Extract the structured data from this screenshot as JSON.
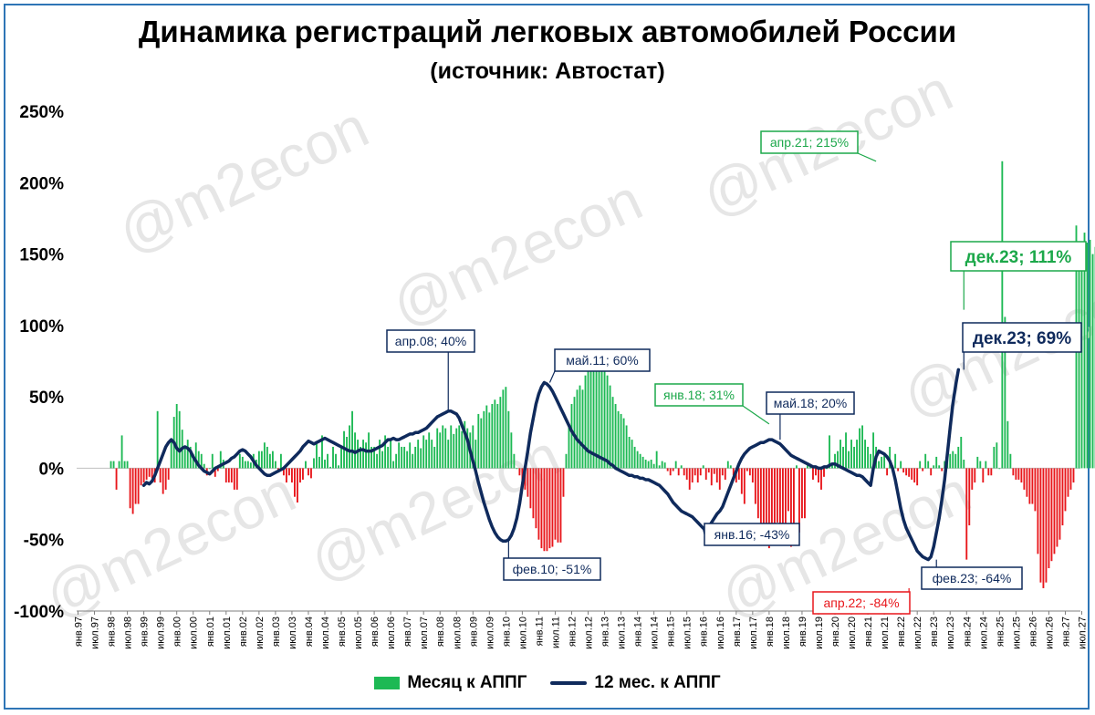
{
  "title": "Динамика регистраций легковых автомобилей России",
  "subtitle": "(источник: Автостат)",
  "watermark": "@m2econ",
  "colors": {
    "bar_pos": "#1db954",
    "bar_neg": "#e8161b",
    "line": "#0f2a5c",
    "ann_green": "#1ca84a",
    "ann_red": "#e8161b",
    "ann_navy": "#0f2a5c"
  },
  "chart_data": {
    "type": "bar",
    "xlim": [
      "янв.97",
      "июл.27"
    ],
    "ylim": [
      -1.0,
      2.5
    ],
    "yticks": [
      "250%",
      "200%",
      "150%",
      "100%",
      "50%",
      "0%",
      "-50%",
      "-100%"
    ],
    "ytick_values": [
      2.5,
      2.0,
      1.5,
      1.0,
      0.5,
      0.0,
      -0.5,
      -1.0
    ],
    "xticks": [
      "янв.97",
      "июл.97",
      "янв.98",
      "июл.98",
      "янв.99",
      "июл.99",
      "янв.00",
      "июл.00",
      "янв.01",
      "июл.01",
      "янв.02",
      "июл.02",
      "янв.03",
      "июл.03",
      "янв.04",
      "июл.04",
      "янв.05",
      "июл.05",
      "янв.06",
      "июл.06",
      "янв.07",
      "июл.07",
      "янв.08",
      "июл.08",
      "янв.09",
      "июл.09",
      "янв.10",
      "июл.10",
      "янв.11",
      "июл.11",
      "янв.12",
      "июл.12",
      "янв.13",
      "июл.13",
      "янв.14",
      "июл.14",
      "янв.15",
      "июл.15",
      "янв.16",
      "июл.16",
      "янв.17",
      "июл.17",
      "янв.18",
      "июл.18",
      "янв.19",
      "июл.19",
      "янв.20",
      "июл.20",
      "янв.21",
      "июл.21",
      "янв.22",
      "июл.22",
      "янв.23",
      "июл.23",
      "янв.24",
      "июл.24",
      "янв.25",
      "июл.25",
      "янв.26",
      "июл.26",
      "янв.27",
      "июл.27"
    ],
    "series": [
      {
        "name": "Месяц к АППГ",
        "type": "bar",
        "start": "янв.98",
        "values": [
          0.05,
          0.05,
          -0.15,
          0.05,
          0.23,
          0.05,
          0.05,
          -0.28,
          -0.32,
          -0.25,
          -0.25,
          -0.12,
          -0.1,
          -0.08,
          -0.06,
          -0.07,
          -0.1,
          0.4,
          -0.1,
          -0.18,
          -0.15,
          -0.08,
          0.2,
          0.36,
          0.45,
          0.4,
          0.27,
          0.15,
          0.2,
          0.15,
          0.1,
          0.18,
          0.12,
          0.1,
          0.03,
          -0.05,
          0.0,
          0.1,
          -0.06,
          -0.02,
          0.12,
          0.06,
          -0.1,
          -0.1,
          -0.1,
          -0.15,
          -0.15,
          0.1,
          0.08,
          0.05,
          0.05,
          0.04,
          0.1,
          0.06,
          0.12,
          0.12,
          0.18,
          0.15,
          0.1,
          0.12,
          0.05,
          -0.03,
          0.1,
          -0.05,
          -0.1,
          -0.05,
          -0.1,
          -0.2,
          -0.24,
          -0.1,
          -0.08,
          0.05,
          -0.05,
          -0.07,
          0.07,
          0.18,
          0.08,
          0.23,
          0.06,
          0.1,
          0.01,
          0.15,
          0.1,
          0.02,
          0.15,
          0.26,
          0.22,
          0.3,
          0.4,
          0.25,
          0.2,
          0.15,
          0.2,
          0.18,
          0.25,
          0.15,
          0.15,
          0.1,
          0.2,
          0.12,
          0.23,
          0.15,
          0.2,
          0.05,
          0.1,
          0.18,
          0.15,
          0.15,
          0.12,
          0.18,
          0.1,
          0.15,
          0.2,
          0.14,
          0.23,
          0.2,
          0.25,
          0.2,
          0.15,
          0.28,
          0.25,
          0.3,
          0.28,
          0.2,
          0.3,
          0.24,
          0.28,
          0.3,
          0.26,
          0.33,
          0.28,
          0.25,
          0.3,
          0.2,
          0.38,
          0.35,
          0.4,
          0.44,
          0.39,
          0.45,
          0.48,
          0.45,
          0.5,
          0.55,
          0.57,
          0.4,
          0.25,
          0.1,
          0.0,
          -0.05,
          -0.1,
          -0.15,
          -0.2,
          -0.28,
          -0.35,
          -0.42,
          -0.5,
          -0.56,
          -0.58,
          -0.58,
          -0.56,
          -0.55,
          -0.5,
          -0.52,
          -0.52,
          -0.2,
          0.1,
          0.3,
          0.45,
          0.5,
          0.55,
          0.58,
          0.55,
          0.65,
          0.7,
          0.8,
          0.82,
          0.72,
          0.8,
          0.82,
          0.7,
          0.65,
          0.58,
          0.5,
          0.45,
          0.4,
          0.38,
          0.35,
          0.3,
          0.22,
          0.2,
          0.15,
          0.12,
          0.1,
          0.08,
          0.06,
          0.05,
          0.06,
          0.03,
          0.12,
          0.02,
          0.05,
          0.04,
          -0.02,
          -0.05,
          -0.02,
          0.05,
          -0.05,
          0.02,
          -0.05,
          -0.08,
          -0.15,
          -0.1,
          -0.05,
          -0.1,
          -0.05,
          0.02,
          -0.08,
          -0.03,
          -0.12,
          -0.04,
          -0.1,
          -0.15,
          -0.05,
          -0.08,
          0.05,
          0.02,
          -0.05,
          -0.1,
          -0.08,
          -0.18,
          -0.25,
          -0.02,
          -0.05,
          -0.1,
          -0.25,
          -0.35,
          -0.4,
          -0.45,
          -0.5,
          -0.56,
          -0.42,
          -0.4,
          -0.38,
          -0.52,
          -0.4,
          -0.43,
          -0.3,
          -0.55,
          -0.48,
          0.02,
          -0.45,
          -0.35,
          -0.35,
          0.02,
          0.03,
          -0.08,
          -0.05,
          -0.1,
          -0.15,
          -0.06,
          0.0,
          0.23,
          0.02,
          0.1,
          0.12,
          0.2,
          0.15,
          0.25,
          0.12,
          0.2,
          0.15,
          0.2,
          0.28,
          0.3,
          0.2,
          0.15,
          0.1,
          0.25,
          0.15,
          0.05,
          0.08,
          0.1,
          -0.05,
          0.15,
          0.02,
          0.1,
          -0.02,
          0.05,
          -0.03,
          -0.05,
          -0.06,
          -0.08,
          -0.1,
          -0.12,
          0.05,
          -0.02,
          0.1,
          0.05,
          -0.05,
          0.02,
          0.08,
          0.02,
          -0.02,
          0.05,
          0.1,
          0.1,
          0.12,
          0.1,
          0.15,
          0.22,
          0.06,
          -0.64,
          -0.4,
          -0.15,
          -0.1,
          0.08,
          0.05,
          -0.1,
          0.05,
          -0.05,
          -0.05,
          0.15,
          0.18,
          0.0,
          2.15,
          1.06,
          0.33,
          0.1,
          -0.05,
          -0.08,
          -0.08,
          -0.1,
          -0.15,
          -0.2,
          -0.25,
          -0.25,
          -0.3,
          -0.6,
          -0.8,
          -0.84,
          -0.8,
          -0.7,
          -0.65,
          -0.6,
          -0.55,
          -0.5,
          -0.4,
          -0.3,
          -0.2,
          -0.15,
          -0.1,
          1.7,
          1.52,
          1.5,
          1.65,
          1.58,
          1.6,
          1.5,
          1.55,
          1.4,
          1.2,
          1.11
        ]
      },
      {
        "name": "12 мес. к АППГ",
        "type": "line",
        "start": "янв.99",
        "values": [
          -0.12,
          -0.1,
          -0.11,
          -0.09,
          -0.05,
          0.0,
          0.05,
          0.1,
          0.15,
          0.18,
          0.2,
          0.18,
          0.14,
          0.12,
          0.14,
          0.15,
          0.14,
          0.12,
          0.08,
          0.05,
          0.02,
          0.0,
          -0.02,
          -0.03,
          -0.04,
          -0.02,
          0.0,
          0.01,
          0.02,
          0.03,
          0.04,
          0.05,
          0.07,
          0.08,
          0.1,
          0.12,
          0.13,
          0.12,
          0.1,
          0.08,
          0.05,
          0.02,
          0.0,
          -0.02,
          -0.04,
          -0.05,
          -0.05,
          -0.04,
          -0.03,
          -0.02,
          -0.01,
          0.0,
          0.02,
          0.04,
          0.06,
          0.08,
          0.1,
          0.12,
          0.15,
          0.17,
          0.19,
          0.18,
          0.17,
          0.18,
          0.19,
          0.2,
          0.21,
          0.2,
          0.19,
          0.18,
          0.17,
          0.16,
          0.15,
          0.14,
          0.13,
          0.12,
          0.12,
          0.11,
          0.12,
          0.13,
          0.13,
          0.12,
          0.12,
          0.12,
          0.13,
          0.14,
          0.15,
          0.16,
          0.18,
          0.2,
          0.2,
          0.21,
          0.2,
          0.2,
          0.21,
          0.22,
          0.23,
          0.24,
          0.24,
          0.25,
          0.25,
          0.26,
          0.27,
          0.28,
          0.3,
          0.32,
          0.34,
          0.36,
          0.37,
          0.38,
          0.39,
          0.4,
          0.4,
          0.39,
          0.38,
          0.35,
          0.3,
          0.25,
          0.2,
          0.12,
          0.05,
          -0.02,
          -0.1,
          -0.17,
          -0.24,
          -0.3,
          -0.36,
          -0.41,
          -0.45,
          -0.48,
          -0.5,
          -0.51,
          -0.51,
          -0.5,
          -0.47,
          -0.42,
          -0.35,
          -0.25,
          -0.12,
          0.0,
          0.12,
          0.25,
          0.35,
          0.45,
          0.52,
          0.57,
          0.6,
          0.59,
          0.57,
          0.54,
          0.5,
          0.46,
          0.42,
          0.38,
          0.34,
          0.3,
          0.26,
          0.23,
          0.2,
          0.18,
          0.16,
          0.14,
          0.12,
          0.11,
          0.1,
          0.09,
          0.08,
          0.07,
          0.06,
          0.05,
          0.03,
          0.02,
          0.0,
          -0.01,
          -0.02,
          -0.03,
          -0.04,
          -0.05,
          -0.05,
          -0.06,
          -0.06,
          -0.07,
          -0.07,
          -0.08,
          -0.08,
          -0.09,
          -0.1,
          -0.11,
          -0.12,
          -0.14,
          -0.16,
          -0.18,
          -0.21,
          -0.24,
          -0.26,
          -0.28,
          -0.3,
          -0.31,
          -0.32,
          -0.33,
          -0.34,
          -0.36,
          -0.38,
          -0.4,
          -0.42,
          -0.43,
          -0.41,
          -0.38,
          -0.35,
          -0.32,
          -0.3,
          -0.27,
          -0.22,
          -0.17,
          -0.12,
          -0.07,
          -0.02,
          0.03,
          0.07,
          0.1,
          0.12,
          0.14,
          0.15,
          0.16,
          0.17,
          0.18,
          0.18,
          0.19,
          0.2,
          0.2,
          0.19,
          0.18,
          0.17,
          0.15,
          0.13,
          0.11,
          0.09,
          0.08,
          0.07,
          0.06,
          0.05,
          0.04,
          0.03,
          0.02,
          0.01,
          0.01,
          0.0,
          0.0,
          0.01,
          0.01,
          0.02,
          0.03,
          0.03,
          0.02,
          0.01,
          0.0,
          -0.01,
          -0.02,
          -0.03,
          -0.04,
          -0.05,
          -0.05,
          -0.06,
          -0.08,
          -0.1,
          -0.12,
          0.0,
          0.08,
          0.12,
          0.11,
          0.1,
          0.08,
          0.05,
          0.0,
          -0.08,
          -0.18,
          -0.28,
          -0.36,
          -0.42,
          -0.46,
          -0.5,
          -0.54,
          -0.58,
          -0.6,
          -0.62,
          -0.63,
          -0.64,
          -0.62,
          -0.55,
          -0.45,
          -0.35,
          -0.22,
          -0.08,
          0.1,
          0.28,
          0.45,
          0.58,
          0.69
        ]
      }
    ],
    "annotations": [
      {
        "text": "апр.21; 215%",
        "color": "green"
      },
      {
        "text": "дек.23; 111%",
        "color": "green"
      },
      {
        "text": "янв.18; 31%",
        "color": "green"
      },
      {
        "text": "апр.08; 40%",
        "color": "navy"
      },
      {
        "text": "май.11; 60%",
        "color": "navy"
      },
      {
        "text": "май.18; 20%",
        "color": "navy"
      },
      {
        "text": "дек.23; 69%",
        "color": "navy"
      },
      {
        "text": "фев.10; -51%",
        "color": "navy"
      },
      {
        "text": "янв.16; -43%",
        "color": "navy"
      },
      {
        "text": "фев.23; -64%",
        "color": "navy"
      },
      {
        "text": "апр.22; -84%",
        "color": "red"
      }
    ],
    "legend": [
      "Месяц к АППГ",
      "12 мес. к АППГ"
    ],
    "legend_position": "bottom"
  }
}
